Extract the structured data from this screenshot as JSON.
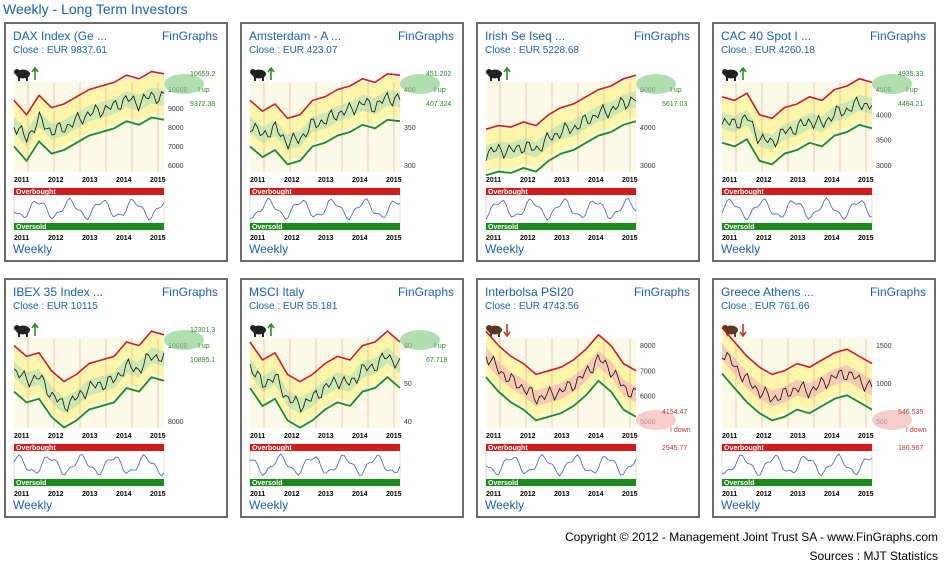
{
  "page_title": "Weekly - Long Term Investors",
  "brand_label": "FinGraphs",
  "weekly_label": "Weekly",
  "overbought_label": "Overbought",
  "oversold_label": "Oversold",
  "years": [
    "2011",
    "2012",
    "2013",
    "2014",
    "2015"
  ],
  "colors": {
    "up": "#2b8a2b",
    "down": "#c0392b",
    "link": "#1a5fb4"
  },
  "footer": {
    "copyright": "Copyright © 2012 - Management Joint Trust SA - www.FinGraphs.com",
    "sources": "Sources :  MJT Statistics"
  },
  "panels": [
    {
      "name": "DAX Index (Ge ...",
      "close": "Close : EUR 9837.61",
      "trend": "up",
      "icon": "bull-icon",
      "y_ticks": [
        "10000",
        "9000",
        "8000",
        "7000",
        "6000"
      ],
      "level_top": "10659.2",
      "level_bottom": "9372.38",
      "trend_label": "I up"
    },
    {
      "name": "Amsterdam - A ...",
      "close": "Close : EUR 423.07",
      "trend": "up",
      "icon": "bull-icon",
      "y_ticks": [
        "400",
        "350",
        "300"
      ],
      "level_top": "451.202",
      "level_bottom": "407.324",
      "trend_label": "I up"
    },
    {
      "name": "Irish Se Iseq ...",
      "close": "Close : EUR 5228.68",
      "trend": "up",
      "icon": "bull-icon",
      "y_ticks": [
        "5000",
        "4000",
        "3000"
      ],
      "level_top": "",
      "level_bottom": "5617.03",
      "trend_label": "I up"
    },
    {
      "name": "CAC 40 Spot I ...",
      "close": "Close : EUR 4260.18",
      "trend": "up",
      "icon": "bull-icon",
      "y_ticks": [
        "4500",
        "4000",
        "3500",
        "3000"
      ],
      "level_top": "4935.33",
      "level_bottom": "4484.21",
      "trend_label": "I up"
    },
    {
      "name": "IBEX 35 Index ...",
      "close": "Close : EUR 10115",
      "trend": "up",
      "icon": "bull-icon",
      "y_ticks": [
        "10000",
        "8000"
      ],
      "level_top": "12301.3",
      "level_bottom": "10895.1",
      "trend_label": "I up"
    },
    {
      "name": "MSCI Italy",
      "close": "Close : EUR 55.181",
      "trend": "up",
      "icon": "bull-icon",
      "y_ticks": [
        "60",
        "50",
        "40"
      ],
      "level_top": "",
      "level_bottom": "67.718",
      "trend_label": "I up"
    },
    {
      "name": "Interbolsa PSI20",
      "close": "Close : EUR 4743.56",
      "trend": "down",
      "icon": "bear-icon",
      "y_ticks": [
        "8000",
        "7000",
        "6000",
        "5000"
      ],
      "level_top": "4154.47",
      "level_bottom": "2945.77",
      "trend_label": "I down"
    },
    {
      "name": "Greece Athens ...",
      "close": "Close : EUR 761.66",
      "trend": "down",
      "icon": "bear-icon",
      "y_ticks": [
        "1500",
        "1000",
        "500"
      ],
      "level_top": "546.535",
      "level_bottom": "186.967",
      "trend_label": "I down"
    }
  ]
}
